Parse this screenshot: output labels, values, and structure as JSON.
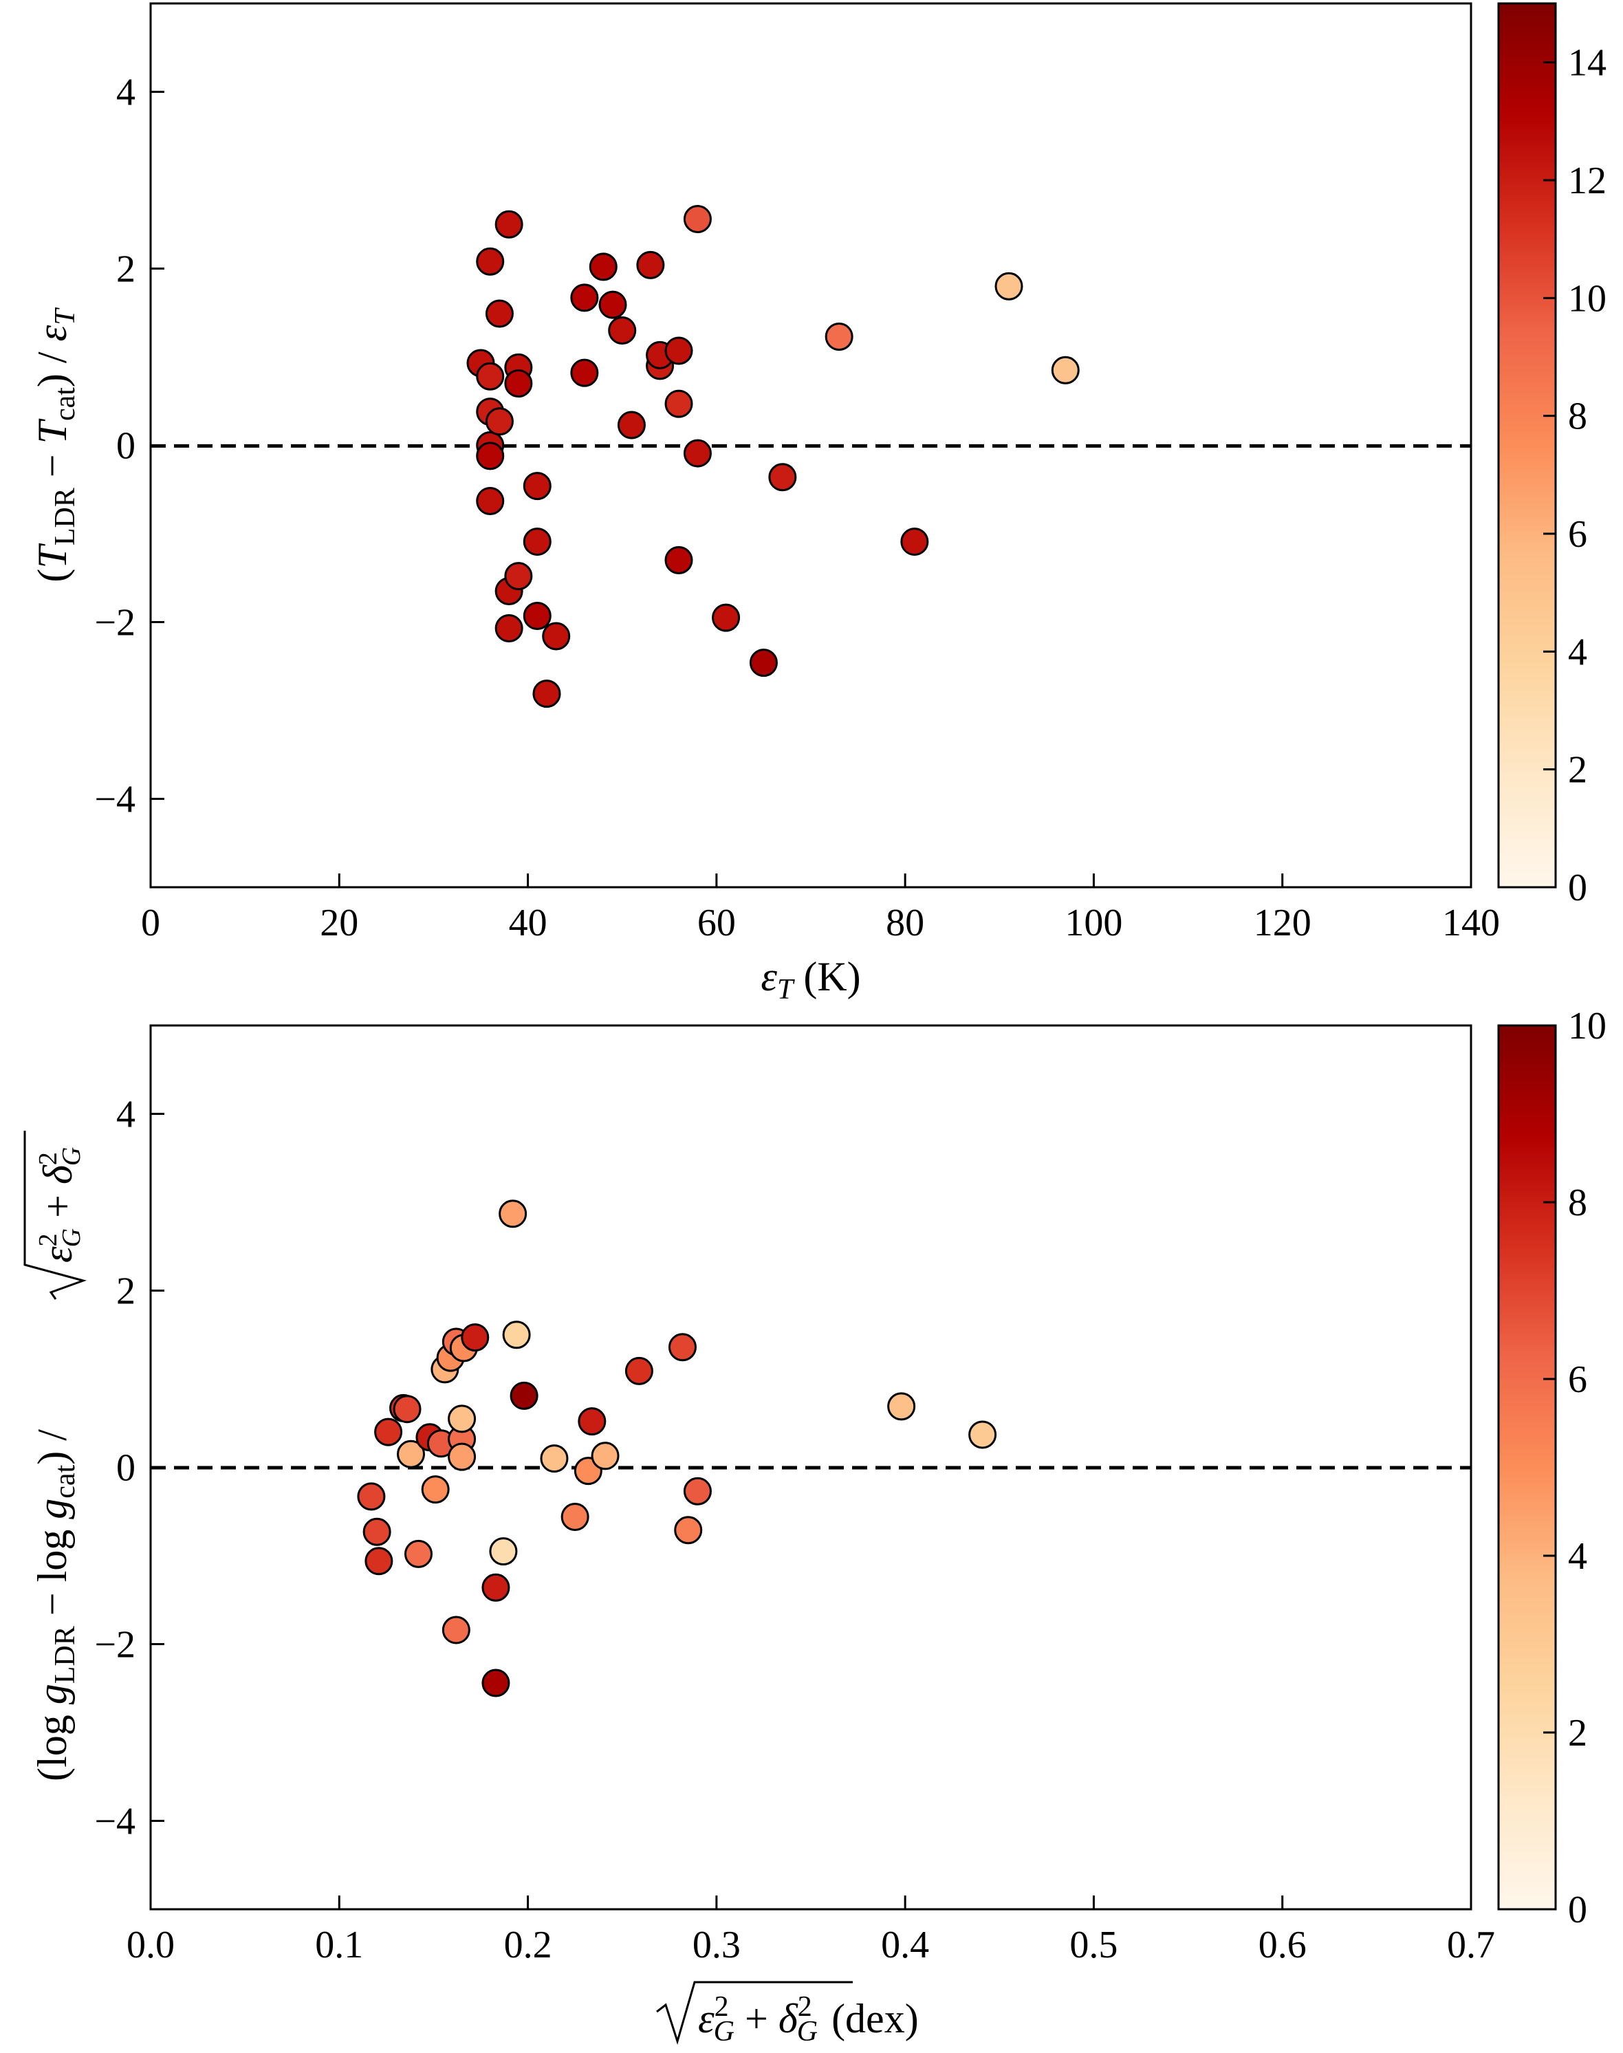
{
  "chart_data": [
    {
      "type": "scatter",
      "title": "",
      "xlabel": "ε_T (K)",
      "ylabel": "(T_LDR − T_cat) / ε_T",
      "xlim": [
        0,
        140
      ],
      "ylim": [
        -5,
        5
      ],
      "xticks": [
        0,
        20,
        40,
        60,
        80,
        100,
        120,
        140
      ],
      "yticks": [
        -4,
        -2,
        0,
        2,
        4
      ],
      "xtick_labels": [
        "0",
        "20",
        "40",
        "60",
        "80",
        "100",
        "120",
        "140"
      ],
      "ytick_labels": [
        "−4",
        "−2",
        "0",
        "2",
        "4"
      ],
      "reference_line": {
        "y": 0,
        "style": "dashed"
      },
      "colorbar": {
        "min": 0,
        "max": 15,
        "ticks": [
          0,
          2,
          4,
          6,
          8,
          10,
          12,
          14
        ],
        "tick_labels": [
          "0",
          "2",
          "4",
          "6",
          "8",
          "10",
          "12",
          "14"
        ],
        "colormap": "OrRd"
      },
      "points": [
        {
          "x": 35,
          "y": 0.93,
          "c": 12.5
        },
        {
          "x": 36,
          "y": 2.08,
          "c": 12.5
        },
        {
          "x": 36,
          "y": 0.78,
          "c": 12.0
        },
        {
          "x": 36,
          "y": 0.38,
          "c": 12.0
        },
        {
          "x": 36,
          "y": 0.0,
          "c": 12.5
        },
        {
          "x": 36,
          "y": -0.12,
          "c": 13.0
        },
        {
          "x": 36,
          "y": -0.63,
          "c": 12.5
        },
        {
          "x": 37,
          "y": 1.49,
          "c": 12.5
        },
        {
          "x": 37,
          "y": 0.27,
          "c": 12.0
        },
        {
          "x": 38,
          "y": 2.5,
          "c": 12.5
        },
        {
          "x": 38,
          "y": -1.65,
          "c": 12.5
        },
        {
          "x": 38,
          "y": -2.07,
          "c": 12.5
        },
        {
          "x": 39,
          "y": 0.88,
          "c": 12.5
        },
        {
          "x": 39,
          "y": 0.7,
          "c": 13.0
        },
        {
          "x": 39,
          "y": -1.48,
          "c": 12.0
        },
        {
          "x": 41,
          "y": -0.46,
          "c": 12.5
        },
        {
          "x": 41,
          "y": -1.09,
          "c": 12.5
        },
        {
          "x": 41,
          "y": -1.93,
          "c": 13.0
        },
        {
          "x": 42,
          "y": -2.81,
          "c": 12.5
        },
        {
          "x": 43,
          "y": -2.16,
          "c": 12.5
        },
        {
          "x": 46,
          "y": 1.67,
          "c": 13.0
        },
        {
          "x": 46,
          "y": 0.82,
          "c": 13.0
        },
        {
          "x": 48,
          "y": 2.02,
          "c": 13.0
        },
        {
          "x": 49,
          "y": 1.59,
          "c": 13.0
        },
        {
          "x": 50,
          "y": 1.3,
          "c": 12.5
        },
        {
          "x": 51,
          "y": 0.23,
          "c": 12.5
        },
        {
          "x": 53,
          "y": 2.04,
          "c": 12.5
        },
        {
          "x": 54,
          "y": 0.9,
          "c": 12.0
        },
        {
          "x": 54,
          "y": 1.02,
          "c": 12.5
        },
        {
          "x": 56,
          "y": 1.07,
          "c": 12.5
        },
        {
          "x": 56,
          "y": 0.47,
          "c": 11.5
        },
        {
          "x": 56,
          "y": -1.3,
          "c": 13.0
        },
        {
          "x": 58,
          "y": 2.56,
          "c": 10.0
        },
        {
          "x": 58,
          "y": -0.09,
          "c": 12.5
        },
        {
          "x": 61,
          "y": -1.95,
          "c": 12.5
        },
        {
          "x": 65,
          "y": -2.46,
          "c": 13.5
        },
        {
          "x": 67,
          "y": -0.36,
          "c": 12.0
        },
        {
          "x": 73,
          "y": 1.23,
          "c": 9.0
        },
        {
          "x": 81,
          "y": -1.09,
          "c": 12.5
        },
        {
          "x": 91,
          "y": 1.8,
          "c": 5.0
        },
        {
          "x": 97,
          "y": 0.85,
          "c": 5.0
        }
      ]
    },
    {
      "type": "scatter",
      "title": "",
      "xlabel": "√(ε_G² + δ_G²) (dex)",
      "ylabel": "(log g_LDR − log g_cat) / √(ε_G² + δ_G²)",
      "xlim": [
        0.0,
        0.7
      ],
      "ylim": [
        -5,
        5
      ],
      "xticks": [
        0.0,
        0.1,
        0.2,
        0.3,
        0.4,
        0.5,
        0.6,
        0.7
      ],
      "yticks": [
        -4,
        -2,
        0,
        2,
        4
      ],
      "xtick_labels": [
        "0.0",
        "0.1",
        "0.2",
        "0.3",
        "0.4",
        "0.5",
        "0.6",
        "0.7"
      ],
      "ytick_labels": [
        "−4",
        "−2",
        "0",
        "2",
        "4"
      ],
      "reference_line": {
        "y": 0,
        "style": "dashed"
      },
      "colorbar": {
        "min": 0,
        "max": 10,
        "ticks": [
          0,
          2,
          4,
          6,
          8,
          10
        ],
        "tick_labels": [
          "0",
          "2",
          "4",
          "6",
          "8",
          "10"
        ],
        "colormap": "OrRd"
      },
      "points": [
        {
          "x": 0.117,
          "y": -0.33,
          "c": 7.0
        },
        {
          "x": 0.12,
          "y": -0.73,
          "c": 7.0
        },
        {
          "x": 0.121,
          "y": -1.06,
          "c": 7.5
        },
        {
          "x": 0.126,
          "y": 0.4,
          "c": 7.5
        },
        {
          "x": 0.134,
          "y": 0.67,
          "c": 7.5
        },
        {
          "x": 0.136,
          "y": 0.66,
          "c": 7.0
        },
        {
          "x": 0.138,
          "y": 0.15,
          "c": 4.0
        },
        {
          "x": 0.142,
          "y": -0.98,
          "c": 6.0
        },
        {
          "x": 0.148,
          "y": 0.34,
          "c": 8.0
        },
        {
          "x": 0.151,
          "y": -0.25,
          "c": 5.0
        },
        {
          "x": 0.154,
          "y": 0.27,
          "c": 6.5
        },
        {
          "x": 0.156,
          "y": 1.11,
          "c": 4.0
        },
        {
          "x": 0.159,
          "y": 1.24,
          "c": 5.0
        },
        {
          "x": 0.162,
          "y": -1.84,
          "c": 6.0
        },
        {
          "x": 0.162,
          "y": 1.42,
          "c": 6.0
        },
        {
          "x": 0.165,
          "y": 0.32,
          "c": 6.0
        },
        {
          "x": 0.165,
          "y": 0.12,
          "c": 4.5
        },
        {
          "x": 0.165,
          "y": 0.55,
          "c": 3.5
        },
        {
          "x": 0.166,
          "y": 1.35,
          "c": 5.0
        },
        {
          "x": 0.172,
          "y": 1.47,
          "c": 8.0
        },
        {
          "x": 0.183,
          "y": -1.36,
          "c": 8.0
        },
        {
          "x": 0.183,
          "y": -2.44,
          "c": 9.0
        },
        {
          "x": 0.187,
          "y": -0.95,
          "c": 2.0
        },
        {
          "x": 0.192,
          "y": 2.87,
          "c": 4.5
        },
        {
          "x": 0.194,
          "y": 1.5,
          "c": 2.5
        },
        {
          "x": 0.198,
          "y": 0.81,
          "c": 9.5
        },
        {
          "x": 0.214,
          "y": 0.1,
          "c": 3.5
        },
        {
          "x": 0.225,
          "y": -0.56,
          "c": 5.5
        },
        {
          "x": 0.232,
          "y": -0.04,
          "c": 5.0
        },
        {
          "x": 0.234,
          "y": 0.52,
          "c": 8.0
        },
        {
          "x": 0.241,
          "y": 0.13,
          "c": 4.0
        },
        {
          "x": 0.259,
          "y": 1.09,
          "c": 7.5
        },
        {
          "x": 0.282,
          "y": 1.36,
          "c": 7.0
        },
        {
          "x": 0.285,
          "y": -0.71,
          "c": 5.5
        },
        {
          "x": 0.29,
          "y": -0.27,
          "c": 6.5
        },
        {
          "x": 0.398,
          "y": 0.69,
          "c": 3.5
        },
        {
          "x": 0.441,
          "y": 0.37,
          "c": 3.0
        }
      ]
    }
  ]
}
